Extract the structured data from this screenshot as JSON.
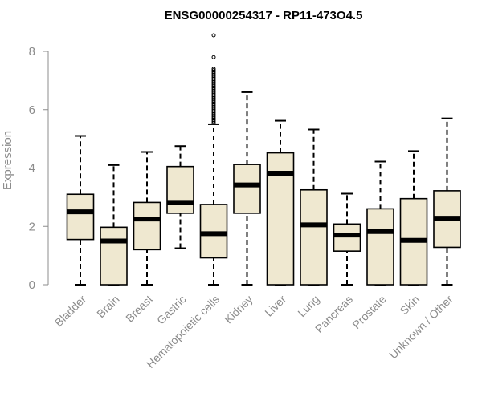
{
  "chart_data": {
    "type": "boxplot",
    "title": "ENSG00000254317 - RP11-473O4.5",
    "xlabel": "",
    "ylabel": "Expression",
    "ylim": [
      0,
      8.6
    ],
    "yticks": [
      0,
      2,
      4,
      6,
      8
    ],
    "box_fill": "#efe8d0",
    "box_stroke": "#000000",
    "categories": [
      "Bladder",
      "Brain",
      "Breast",
      "Gastric",
      "Hematopoietic cells",
      "Kidney",
      "Liver",
      "Lung",
      "Pancreas",
      "Prostate",
      "Skin",
      "Unknown / Other"
    ],
    "boxes": [
      {
        "name": "Bladder",
        "min": 0,
        "q1": 1.55,
        "median": 2.5,
        "q3": 3.1,
        "max": 5.1,
        "outliers": []
      },
      {
        "name": "Brain",
        "min": 0,
        "q1": 0,
        "median": 1.5,
        "q3": 1.97,
        "max": 4.1,
        "outliers": []
      },
      {
        "name": "Breast",
        "min": 0,
        "q1": 1.2,
        "median": 2.25,
        "q3": 2.82,
        "max": 4.55,
        "outliers": []
      },
      {
        "name": "Gastric",
        "min": 1.25,
        "q1": 2.45,
        "median": 2.82,
        "q3": 4.05,
        "max": 4.75,
        "outliers": []
      },
      {
        "name": "Hematopoietic cells",
        "min": 0,
        "q1": 0.92,
        "median": 1.75,
        "q3": 2.75,
        "max": 5.5,
        "outliers": [
          5.55,
          5.6,
          5.65,
          5.7,
          5.75,
          5.8,
          5.85,
          5.9,
          5.95,
          6.0,
          6.05,
          6.1,
          6.15,
          6.2,
          6.25,
          6.3,
          6.35,
          6.4,
          6.45,
          6.5,
          6.55,
          6.6,
          6.65,
          6.7,
          6.75,
          6.8,
          6.85,
          6.9,
          6.95,
          7.0,
          7.05,
          7.1,
          7.15,
          7.2,
          7.25,
          7.3,
          7.35,
          7.4,
          7.8,
          8.55
        ]
      },
      {
        "name": "Kidney",
        "min": 0,
        "q1": 2.45,
        "median": 3.42,
        "q3": 4.12,
        "max": 6.6,
        "outliers": []
      },
      {
        "name": "Liver",
        "min": 0,
        "q1": 0,
        "median": 3.82,
        "q3": 4.52,
        "max": 5.62,
        "outliers": []
      },
      {
        "name": "Lung",
        "min": 0,
        "q1": 0,
        "median": 2.05,
        "q3": 3.25,
        "max": 5.32,
        "outliers": []
      },
      {
        "name": "Pancreas",
        "min": 0,
        "q1": 1.15,
        "median": 1.7,
        "q3": 2.08,
        "max": 3.12,
        "outliers": []
      },
      {
        "name": "Prostate",
        "min": 0,
        "q1": 0,
        "median": 1.82,
        "q3": 2.6,
        "max": 4.22,
        "outliers": []
      },
      {
        "name": "Skin",
        "min": 0,
        "q1": 0,
        "median": 1.52,
        "q3": 2.95,
        "max": 4.58,
        "outliers": []
      },
      {
        "name": "Unknown / Other",
        "min": 0,
        "q1": 1.28,
        "median": 2.28,
        "q3": 3.22,
        "max": 5.7,
        "outliers": []
      }
    ]
  }
}
